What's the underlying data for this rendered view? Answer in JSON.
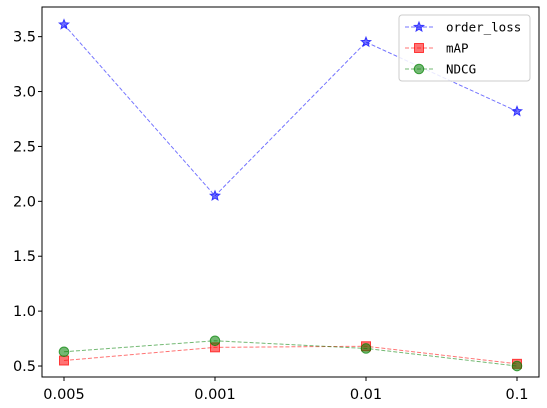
{
  "chart_data": {
    "type": "line",
    "categories": [
      "0.005",
      "0.001",
      "0.01",
      "0.1"
    ],
    "ylim": [
      0.4,
      3.77
    ],
    "y_ticks": [
      "0.5",
      "1.0",
      "1.5",
      "2.0",
      "2.5",
      "3.0",
      "3.5"
    ],
    "grid": false,
    "legend_position": "top-right",
    "series": [
      {
        "name": "order_loss",
        "values": [
          3.61,
          2.05,
          3.45,
          2.82
        ],
        "color": "#0000ff",
        "marker": "star"
      },
      {
        "name": "mAP",
        "values": [
          0.55,
          0.67,
          0.68,
          0.52
        ],
        "color": "#ff0000",
        "marker": "square"
      },
      {
        "name": "NDCG",
        "values": [
          0.63,
          0.73,
          0.66,
          0.5
        ],
        "color": "#008000",
        "marker": "circle"
      }
    ]
  }
}
